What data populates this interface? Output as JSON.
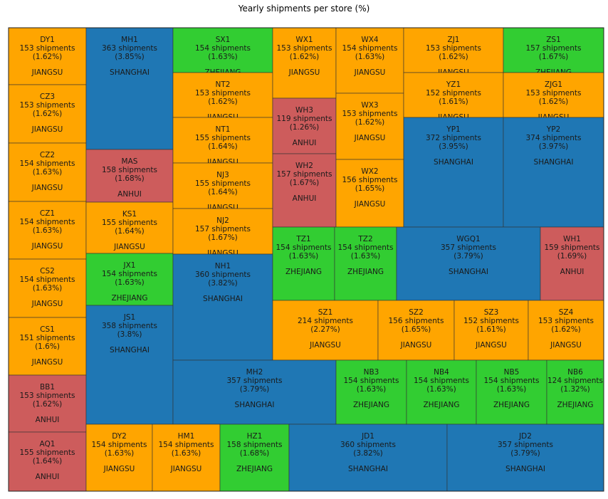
{
  "chart_data": {
    "type": "treemap",
    "title": "Yearly shipments per store (%)",
    "colors": {
      "JIANGSU": "#ffa500",
      "SHANGHAI": "#1f77b4",
      "ZHEJIANG": "#32cd32",
      "ANHUI": "#cd5c5c"
    },
    "stores": [
      {
        "name": "DY1",
        "shipments": "153 shipments",
        "pct": "(1.62%)",
        "region": "JIANGSU"
      },
      {
        "name": "CZ3",
        "shipments": "153 shipments",
        "pct": "(1.62%)",
        "region": "JIANGSU"
      },
      {
        "name": "CZ2",
        "shipments": "154 shipments",
        "pct": "(1.63%)",
        "region": "JIANGSU"
      },
      {
        "name": "CZ1",
        "shipments": "154 shipments",
        "pct": "(1.63%)",
        "region": "JIANGSU"
      },
      {
        "name": "CS2",
        "shipments": "154 shipments",
        "pct": "(1.63%)",
        "region": "JIANGSU"
      },
      {
        "name": "CS1",
        "shipments": "151 shipments",
        "pct": "(1.6%)",
        "region": "JIANGSU"
      },
      {
        "name": "BB1",
        "shipments": "153 shipments",
        "pct": "(1.62%)",
        "region": "ANHUI"
      },
      {
        "name": "AQ1",
        "shipments": "155 shipments",
        "pct": "(1.64%)",
        "region": "ANHUI"
      },
      {
        "name": "MH1",
        "shipments": "363 shipments",
        "pct": "(3.85%)",
        "region": "SHANGHAI"
      },
      {
        "name": "MAS",
        "shipments": "158 shipments",
        "pct": "(1.68%)",
        "region": "ANHUI"
      },
      {
        "name": "KS1",
        "shipments": "155 shipments",
        "pct": "(1.64%)",
        "region": "JIANGSU"
      },
      {
        "name": "JX1",
        "shipments": "154 shipments",
        "pct": "(1.63%)",
        "region": "ZHEJIANG"
      },
      {
        "name": "JS1",
        "shipments": "358 shipments",
        "pct": "(3.8%)",
        "region": "SHANGHAI"
      },
      {
        "name": "SX1",
        "shipments": "154 shipments",
        "pct": "(1.63%)",
        "region": "ZHEJIANG"
      },
      {
        "name": "NT2",
        "shipments": "153 shipments",
        "pct": "(1.62%)",
        "region": "JIANGSU"
      },
      {
        "name": "NT1",
        "shipments": "155 shipments",
        "pct": "(1.64%)",
        "region": "JIANGSU"
      },
      {
        "name": "NJ3",
        "shipments": "155 shipments",
        "pct": "(1.64%)",
        "region": "JIANGSU"
      },
      {
        "name": "NJ2",
        "shipments": "157 shipments",
        "pct": "(1.67%)",
        "region": "JIANGSU"
      },
      {
        "name": "NH1",
        "shipments": "360 shipments",
        "pct": "(3.82%)",
        "region": "SHANGHAI"
      },
      {
        "name": "WX1",
        "shipments": "153 shipments",
        "pct": "(1.62%)",
        "region": "JIANGSU"
      },
      {
        "name": "WH3",
        "shipments": "119 shipments",
        "pct": "(1.26%)",
        "region": "ANHUI"
      },
      {
        "name": "WH2",
        "shipments": "157 shipments",
        "pct": "(1.67%)",
        "region": "ANHUI"
      },
      {
        "name": "WX4",
        "shipments": "154 shipments",
        "pct": "(1.63%)",
        "region": "JIANGSU"
      },
      {
        "name": "WX3",
        "shipments": "153 shipments",
        "pct": "(1.62%)",
        "region": "JIANGSU"
      },
      {
        "name": "WX2",
        "shipments": "156 shipments",
        "pct": "(1.65%)",
        "region": "JIANGSU"
      },
      {
        "name": "ZJ1",
        "shipments": "153 shipments",
        "pct": "(1.62%)",
        "region": "JIANGSU"
      },
      {
        "name": "ZS1",
        "shipments": "157 shipments",
        "pct": "(1.67%)",
        "region": "ZHEJIANG"
      },
      {
        "name": "YZ1",
        "shipments": "152 shipments",
        "pct": "(1.61%)",
        "region": "JIANGSU"
      },
      {
        "name": "ZJG1",
        "shipments": "153 shipments",
        "pct": "(1.62%)",
        "region": "JIANGSU"
      },
      {
        "name": "YP1",
        "shipments": "372 shipments",
        "pct": "(3.95%)",
        "region": "SHANGHAI"
      },
      {
        "name": "YP2",
        "shipments": "374 shipments",
        "pct": "(3.97%)",
        "region": "SHANGHAI"
      },
      {
        "name": "TZ1",
        "shipments": "154 shipments",
        "pct": "(1.63%)",
        "region": "ZHEJIANG"
      },
      {
        "name": "TZ2",
        "shipments": "154 shipments",
        "pct": "(1.63%)",
        "region": "ZHEJIANG"
      },
      {
        "name": "WGQ1",
        "shipments": "357 shipments",
        "pct": "(3.79%)",
        "region": "SHANGHAI"
      },
      {
        "name": "WH1",
        "shipments": "159 shipments",
        "pct": "(1.69%)",
        "region": "ANHUI"
      },
      {
        "name": "SZ1",
        "shipments": "214 shipments",
        "pct": "(2.27%)",
        "region": "JIANGSU"
      },
      {
        "name": "SZ2",
        "shipments": "156 shipments",
        "pct": "(1.65%)",
        "region": "JIANGSU"
      },
      {
        "name": "SZ3",
        "shipments": "152 shipments",
        "pct": "(1.61%)",
        "region": "JIANGSU"
      },
      {
        "name": "SZ4",
        "shipments": "153 shipments",
        "pct": "(1.62%)",
        "region": "JIANGSU"
      },
      {
        "name": "MH2",
        "shipments": "357 shipments",
        "pct": "(3.79%)",
        "region": "SHANGHAI"
      },
      {
        "name": "NB3",
        "shipments": "154 shipments",
        "pct": "(1.63%)",
        "region": "ZHEJIANG"
      },
      {
        "name": "NB4",
        "shipments": "154 shipments",
        "pct": "(1.63%)",
        "region": "ZHEJIANG"
      },
      {
        "name": "NB5",
        "shipments": "154 shipments",
        "pct": "(1.63%)",
        "region": "ZHEJIANG"
      },
      {
        "name": "NB6",
        "shipments": "124 shipments",
        "pct": "(1.32%)",
        "region": "ZHEJIANG"
      },
      {
        "name": "DY2",
        "shipments": "154 shipments",
        "pct": "(1.63%)",
        "region": "JIANGSU"
      },
      {
        "name": "HM1",
        "shipments": "154 shipments",
        "pct": "(1.63%)",
        "region": "JIANGSU"
      },
      {
        "name": "HZ1",
        "shipments": "158 shipments",
        "pct": "(1.68%)",
        "region": "ZHEJIANG"
      },
      {
        "name": "JD1",
        "shipments": "360 shipments",
        "pct": "(3.82%)",
        "region": "SHANGHAI"
      },
      {
        "name": "JD2",
        "shipments": "357 shipments",
        "pct": "(3.79%)",
        "region": "SHANGHAI"
      }
    ]
  }
}
